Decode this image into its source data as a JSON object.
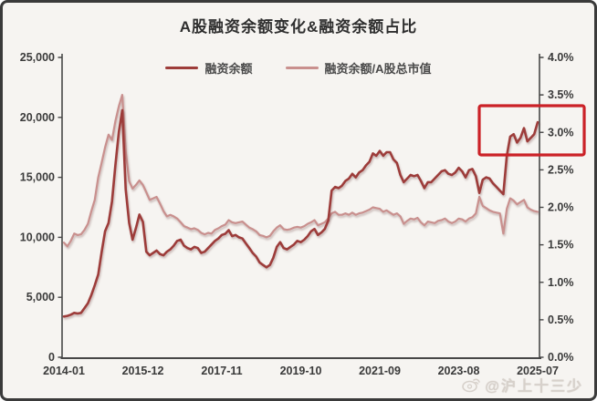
{
  "title": "A股融资余额变化&融资余额占比",
  "legend": [
    {
      "label": "融资余额",
      "color": "#9d3c3a"
    },
    {
      "label": "融资余额/A股总市值",
      "color": "#c9908e"
    }
  ],
  "watermark": {
    "icon": "weibo-icon",
    "text": "@沪上十三少"
  },
  "chart_data": {
    "type": "line",
    "title": "A股融资余额变化&融资余额占比",
    "x_start": "2014-01",
    "x_end": "2025-07",
    "x_interval": "monthly",
    "x_tick_labels": [
      "2014-01",
      "2015-12",
      "2017-11",
      "2019-10",
      "2021-09",
      "2023-08",
      "2025-07"
    ],
    "left_axis": {
      "min": 0,
      "max": 25000,
      "tick_labels": [
        "25,000",
        "20,000",
        "15,000",
        "10,000",
        "5,000",
        "0"
      ]
    },
    "right_axis": {
      "min": 0,
      "max": 4,
      "tick_labels": [
        "4.0%",
        "3.5%",
        "3.0%",
        "2.5%",
        "2.0%",
        "1.5%",
        "1.0%",
        "0.5%",
        "0.0%"
      ]
    },
    "grid": "off",
    "legend_position": "top-center",
    "series": [
      {
        "name": "融资余额",
        "axis": "left",
        "color": "#9d3c3a",
        "values": [
          3400,
          3450,
          3550,
          3700,
          3650,
          3700,
          4100,
          4500,
          5200,
          6000,
          6900,
          8800,
          10500,
          11200,
          13000,
          16000,
          18800,
          20600,
          14000,
          11200,
          9800,
          10800,
          11900,
          11300,
          8800,
          8500,
          8700,
          8900,
          8600,
          8500,
          8800,
          9000,
          9300,
          9700,
          9800,
          9300,
          9100,
          9000,
          9200,
          9100,
          8700,
          8800,
          9100,
          9400,
          9700,
          9900,
          10200,
          10300,
          10600,
          10100,
          10200,
          10000,
          9900,
          9500,
          9100,
          8700,
          8400,
          7900,
          7700,
          7500,
          7700,
          8300,
          9200,
          9600,
          9100,
          9000,
          9200,
          9400,
          9700,
          9600,
          9800,
          10100,
          10500,
          10700,
          10200,
          10400,
          10700,
          11400,
          13900,
          14200,
          14100,
          14300,
          14700,
          14900,
          15300,
          15000,
          15400,
          15600,
          16000,
          16300,
          17000,
          16800,
          17200,
          16800,
          17100,
          17100,
          16500,
          16200,
          15200,
          14600,
          14900,
          15200,
          15100,
          15200,
          14700,
          14100,
          14600,
          14600,
          14900,
          15200,
          15500,
          15600,
          15300,
          15200,
          15400,
          15800,
          15500,
          15000,
          15600,
          15700,
          15100,
          13700,
          14800,
          15000,
          14900,
          14500,
          14200,
          13900,
          13600,
          16800,
          18400,
          18600,
          17900,
          18300,
          19100,
          18000,
          18300,
          18600,
          19600
        ]
      },
      {
        "name": "融资余额/A股总市值",
        "axis": "right",
        "color": "#c9908e",
        "values": [
          1.53,
          1.48,
          1.55,
          1.65,
          1.63,
          1.64,
          1.7,
          1.78,
          1.95,
          2.1,
          2.4,
          2.6,
          2.8,
          2.97,
          2.9,
          3.15,
          3.35,
          3.5,
          2.75,
          2.35,
          2.25,
          2.3,
          2.36,
          2.3,
          2.2,
          2.1,
          2.12,
          2.14,
          2.05,
          1.95,
          1.88,
          1.9,
          1.88,
          1.85,
          1.8,
          1.75,
          1.73,
          1.71,
          1.72,
          1.7,
          1.66,
          1.64,
          1.66,
          1.65,
          1.7,
          1.72,
          1.75,
          1.77,
          1.83,
          1.8,
          1.79,
          1.8,
          1.81,
          1.77,
          1.73,
          1.71,
          1.68,
          1.63,
          1.62,
          1.6,
          1.62,
          1.68,
          1.73,
          1.76,
          1.71,
          1.7,
          1.71,
          1.73,
          1.74,
          1.73,
          1.75,
          1.78,
          1.8,
          1.83,
          1.76,
          1.78,
          1.8,
          1.85,
          1.92,
          1.94,
          1.9,
          1.9,
          1.92,
          1.9,
          1.93,
          1.9,
          1.92,
          1.93,
          1.95,
          1.97,
          2.0,
          1.99,
          1.98,
          1.94,
          1.96,
          1.93,
          1.9,
          1.92,
          1.88,
          1.78,
          1.82,
          1.85,
          1.84,
          1.86,
          1.8,
          1.76,
          1.81,
          1.8,
          1.79,
          1.82,
          1.83,
          1.85,
          1.81,
          1.79,
          1.81,
          1.85,
          1.84,
          1.81,
          1.85,
          1.87,
          1.92,
          2.14,
          2.02,
          1.99,
          1.96,
          1.94,
          1.93,
          1.92,
          1.65,
          1.98,
          2.12,
          2.09,
          2.04,
          2.07,
          2.1,
          2.0,
          1.97,
          1.95,
          1.94
        ]
      }
    ],
    "annotations": [
      {
        "type": "box",
        "color": "#cb2127",
        "description": "red highlight box over late-2024 to 2025-07 surge, spanning about 2.7% to 3.35% on the right axis"
      }
    ]
  }
}
